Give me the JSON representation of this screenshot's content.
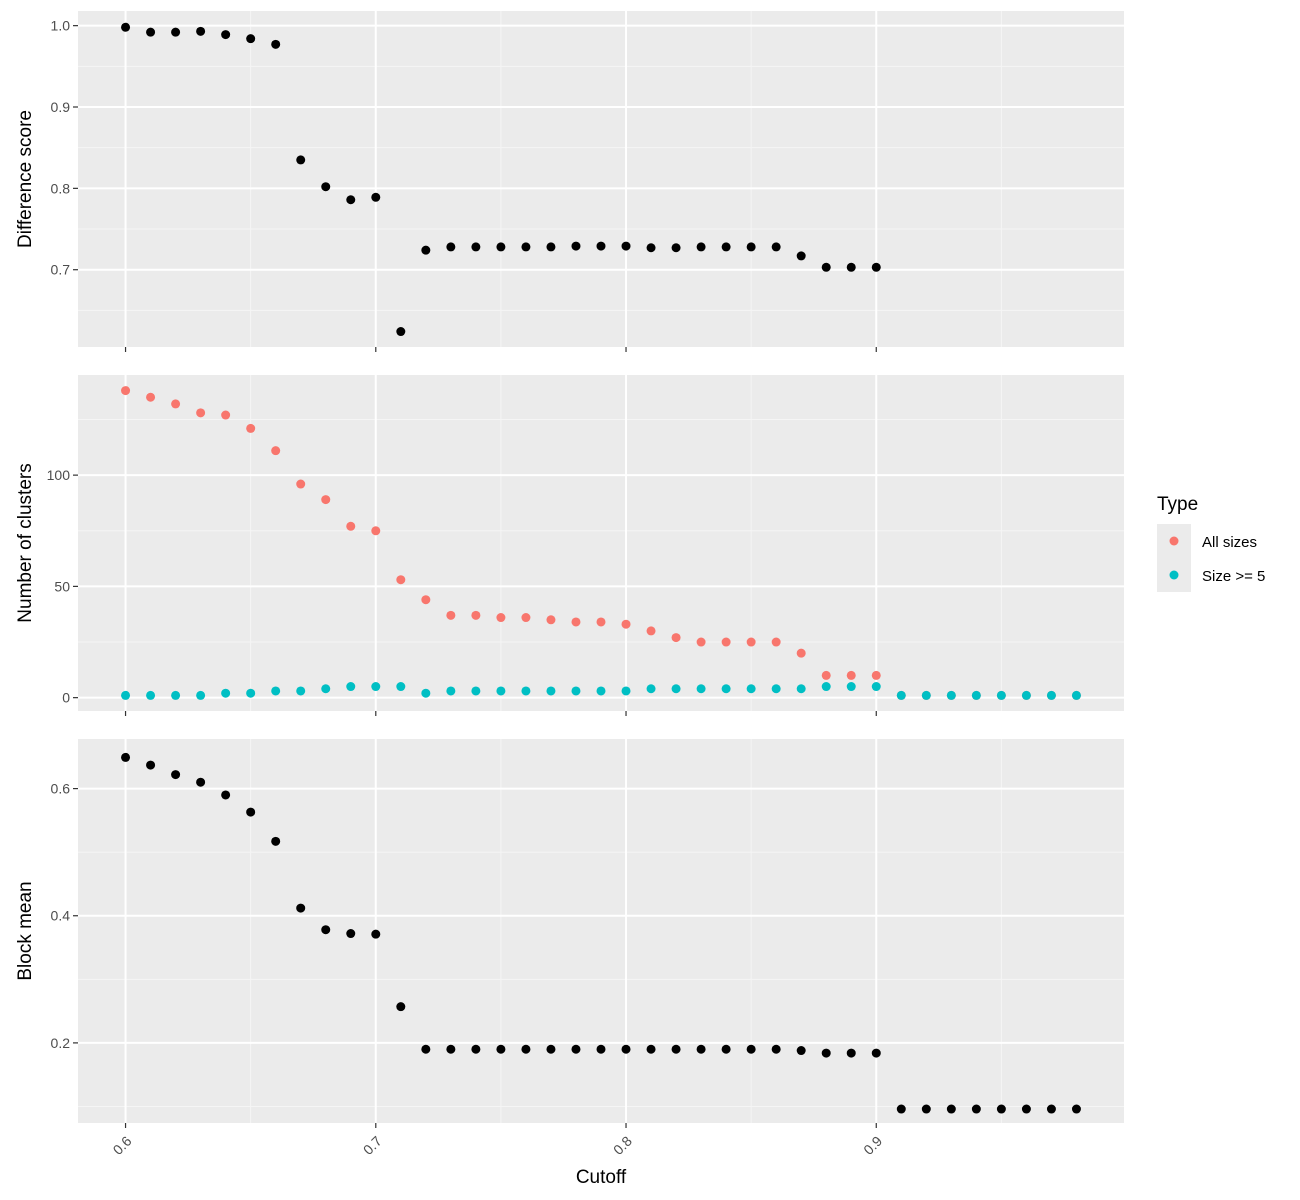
{
  "chart_data": [
    {
      "type": "scatter",
      "panel": "top",
      "ylabel": "Difference score",
      "y_ticks": [
        0.7,
        0.8,
        0.9,
        1.0
      ],
      "y_tick_labels": [
        "0.7",
        "0.8",
        "0.9",
        "1.0"
      ],
      "ylim": [
        0.605,
        1.018
      ],
      "xlim": [
        0.581,
        0.999
      ],
      "point_color": "#000000",
      "x": [
        0.6,
        0.61,
        0.62,
        0.63,
        0.64,
        0.65,
        0.66,
        0.67,
        0.68,
        0.69,
        0.7,
        0.71,
        0.72,
        0.73,
        0.74,
        0.75,
        0.76,
        0.77,
        0.78,
        0.79,
        0.8,
        0.81,
        0.82,
        0.83,
        0.84,
        0.85,
        0.86,
        0.87,
        0.88,
        0.89,
        0.9
      ],
      "y": [
        0.998,
        0.992,
        0.992,
        0.993,
        0.989,
        0.984,
        0.977,
        0.835,
        0.802,
        0.786,
        0.789,
        0.624,
        0.724,
        0.728,
        0.728,
        0.728,
        0.728,
        0.728,
        0.729,
        0.729,
        0.729,
        0.727,
        0.727,
        0.728,
        0.728,
        0.728,
        0.728,
        0.717,
        0.703,
        0.703,
        0.703
      ]
    },
    {
      "type": "scatter",
      "panel": "middle",
      "ylabel": "Number of clusters",
      "y_ticks": [
        0,
        50,
        100
      ],
      "y_tick_labels": [
        "0",
        "50",
        "100"
      ],
      "ylim": [
        -6,
        145
      ],
      "xlim": [
        0.581,
        0.999
      ],
      "series": [
        {
          "name": "All sizes",
          "color": "#F8766D",
          "x": [
            0.6,
            0.61,
            0.62,
            0.63,
            0.64,
            0.65,
            0.66,
            0.67,
            0.68,
            0.69,
            0.7,
            0.71,
            0.72,
            0.73,
            0.74,
            0.75,
            0.76,
            0.77,
            0.78,
            0.79,
            0.8,
            0.81,
            0.82,
            0.83,
            0.84,
            0.85,
            0.86,
            0.87,
            0.88,
            0.89,
            0.9,
            0.91,
            0.92,
            0.93,
            0.94,
            0.95,
            0.96,
            0.97,
            0.98
          ],
          "y": [
            138,
            135,
            132,
            128,
            127,
            121,
            111,
            96,
            89,
            77,
            75,
            53,
            44,
            37,
            37,
            36,
            36,
            35,
            34,
            34,
            33,
            30,
            27,
            25,
            25,
            25,
            25,
            20,
            10,
            10,
            10,
            1,
            1,
            1,
            1,
            1,
            1,
            1,
            1
          ]
        },
        {
          "name": "Size >= 5",
          "color": "#00BFC4",
          "x": [
            0.6,
            0.61,
            0.62,
            0.63,
            0.64,
            0.65,
            0.66,
            0.67,
            0.68,
            0.69,
            0.7,
            0.71,
            0.72,
            0.73,
            0.74,
            0.75,
            0.76,
            0.77,
            0.78,
            0.79,
            0.8,
            0.81,
            0.82,
            0.83,
            0.84,
            0.85,
            0.86,
            0.87,
            0.88,
            0.89,
            0.9,
            0.91,
            0.92,
            0.93,
            0.94,
            0.95,
            0.96,
            0.97,
            0.98
          ],
          "y": [
            1,
            1,
            1,
            1,
            2,
            2,
            3,
            3,
            4,
            5,
            5,
            5,
            2,
            3,
            3,
            3,
            3,
            3,
            3,
            3,
            3,
            4,
            4,
            4,
            4,
            4,
            4,
            4,
            5,
            5,
            5,
            1,
            1,
            1,
            1,
            1,
            1,
            1,
            1
          ]
        }
      ]
    },
    {
      "type": "scatter",
      "panel": "bottom",
      "ylabel": "Block mean",
      "xlabel": "Cutoff",
      "y_ticks": [
        0.2,
        0.4,
        0.6
      ],
      "y_tick_labels": [
        "0.2",
        "0.4",
        "0.6"
      ],
      "ylim": [
        0.074,
        0.678
      ],
      "xlim": [
        0.581,
        0.999
      ],
      "x_ticks": [
        0.6,
        0.7,
        0.8,
        0.9
      ],
      "x_tick_labels": [
        "0.6",
        "0.7",
        "0.8",
        "0.9"
      ],
      "point_color": "#000000",
      "x": [
        0.6,
        0.61,
        0.62,
        0.63,
        0.64,
        0.65,
        0.66,
        0.67,
        0.68,
        0.69,
        0.7,
        0.71,
        0.72,
        0.73,
        0.74,
        0.75,
        0.76,
        0.77,
        0.78,
        0.79,
        0.8,
        0.81,
        0.82,
        0.83,
        0.84,
        0.85,
        0.86,
        0.87,
        0.88,
        0.89,
        0.9,
        0.91,
        0.92,
        0.93,
        0.94,
        0.95,
        0.96,
        0.97,
        0.98
      ],
      "y": [
        0.649,
        0.637,
        0.622,
        0.61,
        0.59,
        0.563,
        0.517,
        0.412,
        0.378,
        0.372,
        0.371,
        0.257,
        0.19,
        0.19,
        0.19,
        0.19,
        0.19,
        0.19,
        0.19,
        0.19,
        0.19,
        0.19,
        0.19,
        0.19,
        0.19,
        0.19,
        0.19,
        0.188,
        0.184,
        0.184,
        0.184,
        0.096,
        0.096,
        0.096,
        0.096,
        0.096,
        0.096,
        0.096,
        0.096
      ]
    }
  ],
  "legend": {
    "title": "Type",
    "items": [
      {
        "label": "All sizes",
        "color": "#F8766D"
      },
      {
        "label": "Size >= 5",
        "color": "#00BFC4"
      }
    ]
  },
  "colors": {
    "panel_background": "#EBEBEB",
    "grid_major": "#FFFFFF",
    "tick": "#333333"
  }
}
